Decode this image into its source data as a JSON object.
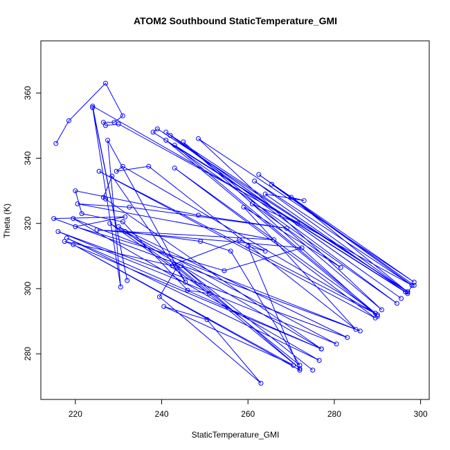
{
  "chart_data": {
    "type": "line",
    "title": "ATOM2 Southbound StaticTemperature_GMI",
    "xlabel": "StaticTemperature_GMI",
    "ylabel": "Theta (K)",
    "xlim": [
      212,
      302
    ],
    "ylim": [
      266,
      376
    ],
    "x_ticks": [
      "220",
      "240",
      "260",
      "280",
      "300"
    ],
    "y_ticks": [
      "280",
      "300",
      "320",
      "340",
      "360"
    ],
    "x_tick_values": [
      220,
      240,
      260,
      280,
      300
    ],
    "y_tick_values": [
      280,
      300,
      320,
      340,
      360
    ],
    "colors": {
      "series": "#0000ff",
      "axes": "#000000",
      "background": "#ffffff"
    },
    "series": [
      {
        "values": [
          [
            215.5,
            344.5
          ],
          [
            218.5,
            351.5
          ],
          [
            227,
            363
          ],
          [
            231,
            353
          ],
          [
            229,
            351
          ],
          [
            226.5,
            351
          ],
          [
            227,
            350
          ],
          [
            230,
            350.5
          ],
          [
            298,
            301
          ],
          [
            297,
            298.5
          ],
          [
            238,
            348
          ],
          [
            239,
            349
          ],
          [
            297,
            299
          ],
          [
            241,
            348
          ],
          [
            295.5,
            297
          ],
          [
            242,
            347
          ],
          [
            294.5,
            295.5
          ],
          [
            241,
            345.5
          ],
          [
            290,
            291.5
          ],
          [
            245,
            345
          ],
          [
            291,
            293.5
          ],
          [
            248.5,
            346
          ],
          [
            298.5,
            302
          ],
          [
            262.5,
            335
          ],
          [
            298.5,
            301
          ],
          [
            265.5,
            332
          ],
          [
            298,
            301
          ],
          [
            261.5,
            333
          ],
          [
            297,
            299
          ],
          [
            270,
            328
          ],
          [
            273,
            327
          ],
          [
            264,
            329
          ],
          [
            296.5,
            299
          ],
          [
            243,
            344
          ],
          [
            289.5,
            292.5
          ],
          [
            243,
            337
          ],
          [
            289.5,
            291
          ],
          [
            225.5,
            336
          ],
          [
            290,
            292
          ],
          [
            231,
            337.5
          ],
          [
            229.5,
            336
          ],
          [
            237,
            337.5
          ],
          [
            285,
            287.5
          ],
          [
            259,
            325
          ],
          [
            281.5,
            306.5
          ],
          [
            261,
            326
          ],
          [
            271.5,
            320
          ],
          [
            224,
            356
          ],
          [
            232,
            302.5
          ],
          [
            224,
            355.5
          ],
          [
            230.5,
            300.5
          ],
          [
            227.5,
            345.5
          ],
          [
            245.5,
            302
          ],
          [
            228.5,
            334.5
          ],
          [
            226.5,
            328
          ],
          [
            227,
            327.5
          ],
          [
            277,
            281.5
          ],
          [
            228,
            320
          ],
          [
            251,
            298.5
          ],
          [
            246,
            299.5
          ],
          [
            231,
            320.5
          ],
          [
            221.5,
            323
          ],
          [
            220,
            330
          ],
          [
            248.5,
            322.5
          ],
          [
            269,
            318.5
          ],
          [
            232.5,
            325
          ],
          [
            220.5,
            326
          ],
          [
            266,
            315
          ],
          [
            225,
            318
          ],
          [
            272.5,
            312.5
          ],
          [
            254.5,
            305.5
          ],
          [
            220,
            319
          ],
          [
            231.5,
            322
          ],
          [
            215,
            321.5
          ],
          [
            286,
            287
          ],
          [
            219.5,
            321.5
          ],
          [
            276.5,
            278
          ],
          [
            218,
            315.5
          ],
          [
            277,
            281.5
          ],
          [
            217.5,
            314.5
          ],
          [
            242.5,
            307
          ],
          [
            230,
            319
          ],
          [
            283,
            285
          ],
          [
            216,
            317.5
          ],
          [
            280.5,
            283
          ],
          [
            231.5,
            317.5
          ],
          [
            249,
            314.5
          ],
          [
            256,
            311.5
          ],
          [
            272,
            276.5
          ],
          [
            243,
            307.5
          ],
          [
            258,
            315
          ],
          [
            264,
            311.5
          ],
          [
            260,
            313
          ],
          [
            272,
            275
          ],
          [
            219.5,
            313.5
          ],
          [
            270.5,
            276.5
          ],
          [
            240.5,
            294.5
          ],
          [
            250.5,
            290.5
          ],
          [
            263,
            271
          ],
          [
            239.5,
            297.5
          ],
          [
            243.5,
            306.5
          ],
          [
            272,
            275.5
          ],
          [
            244.5,
            307
          ],
          [
            275,
            275
          ]
        ]
      }
    ]
  }
}
